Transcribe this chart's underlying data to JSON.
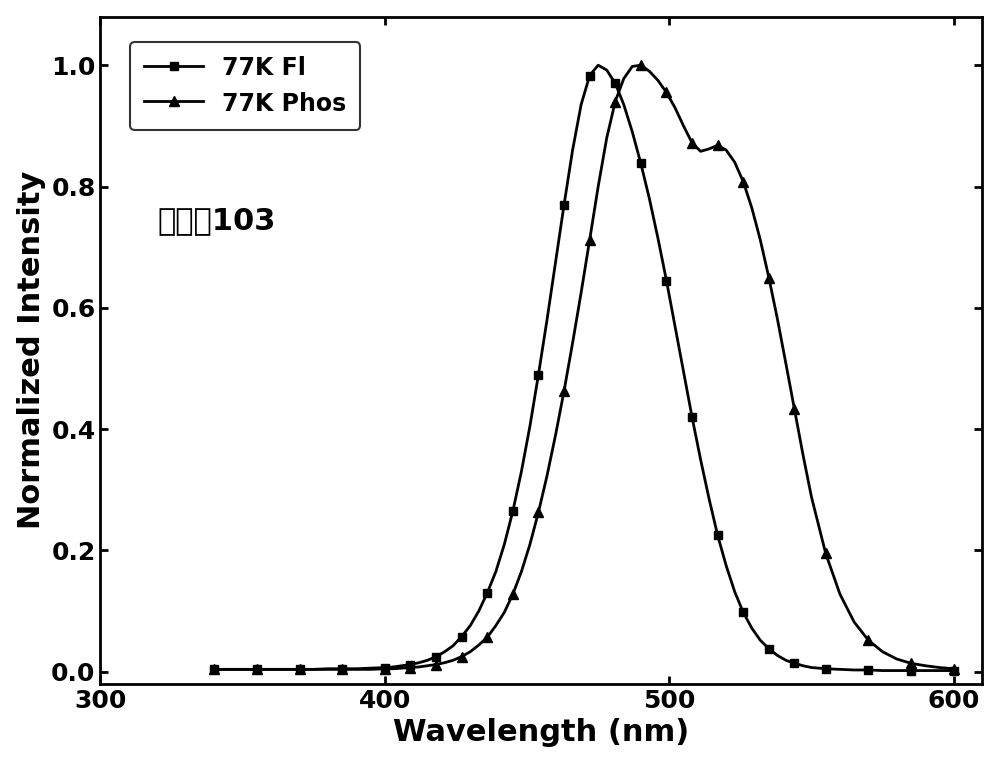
{
  "title": "",
  "xlabel": "Wavelength (nm)",
  "ylabel": "Normalized Intensity",
  "annotation": "化合物103",
  "xlim": [
    300,
    610
  ],
  "ylim": [
    -0.02,
    1.08
  ],
  "xticks": [
    300,
    400,
    500,
    600
  ],
  "yticks": [
    0.0,
    0.2,
    0.4,
    0.6,
    0.8,
    1.0
  ],
  "legend_labels": [
    "77K Fl",
    "77K Phos"
  ],
  "background_color": "#ffffff",
  "line_color": "#000000",
  "fl_x": [
    340,
    345,
    350,
    355,
    360,
    365,
    370,
    375,
    380,
    385,
    390,
    395,
    400,
    403,
    406,
    409,
    412,
    415,
    418,
    421,
    424,
    427,
    430,
    433,
    436,
    439,
    442,
    445,
    448,
    451,
    454,
    457,
    460,
    463,
    466,
    469,
    472,
    475,
    478,
    481,
    484,
    487,
    490,
    493,
    496,
    499,
    502,
    505,
    508,
    511,
    514,
    517,
    520,
    523,
    526,
    529,
    532,
    535,
    538,
    541,
    544,
    547,
    550,
    555,
    560,
    565,
    570,
    575,
    580,
    585,
    590,
    595,
    600
  ],
  "fl_y": [
    0.004,
    0.004,
    0.004,
    0.004,
    0.004,
    0.004,
    0.004,
    0.004,
    0.005,
    0.005,
    0.005,
    0.006,
    0.007,
    0.008,
    0.01,
    0.012,
    0.015,
    0.019,
    0.025,
    0.033,
    0.043,
    0.058,
    0.076,
    0.1,
    0.13,
    0.165,
    0.21,
    0.265,
    0.33,
    0.405,
    0.49,
    0.58,
    0.675,
    0.77,
    0.86,
    0.935,
    0.983,
    1.0,
    0.992,
    0.97,
    0.935,
    0.89,
    0.838,
    0.78,
    0.715,
    0.645,
    0.57,
    0.495,
    0.42,
    0.35,
    0.285,
    0.225,
    0.175,
    0.132,
    0.098,
    0.072,
    0.052,
    0.038,
    0.027,
    0.019,
    0.014,
    0.01,
    0.007,
    0.005,
    0.004,
    0.003,
    0.003,
    0.002,
    0.002,
    0.002,
    0.002,
    0.002,
    0.002
  ],
  "phos_x": [
    340,
    345,
    350,
    355,
    360,
    365,
    370,
    375,
    380,
    385,
    390,
    395,
    400,
    403,
    406,
    409,
    412,
    415,
    418,
    421,
    424,
    427,
    430,
    433,
    436,
    439,
    442,
    445,
    448,
    451,
    454,
    457,
    460,
    463,
    466,
    469,
    472,
    475,
    478,
    481,
    484,
    487,
    490,
    493,
    496,
    499,
    502,
    505,
    508,
    511,
    514,
    517,
    520,
    523,
    526,
    529,
    532,
    535,
    538,
    541,
    544,
    547,
    550,
    555,
    560,
    565,
    570,
    575,
    580,
    585,
    590,
    595,
    600
  ],
  "phos_y": [
    0.004,
    0.004,
    0.004,
    0.004,
    0.004,
    0.004,
    0.004,
    0.004,
    0.004,
    0.004,
    0.004,
    0.004,
    0.005,
    0.005,
    0.006,
    0.007,
    0.008,
    0.01,
    0.012,
    0.015,
    0.019,
    0.025,
    0.033,
    0.044,
    0.057,
    0.076,
    0.098,
    0.128,
    0.165,
    0.21,
    0.263,
    0.323,
    0.39,
    0.463,
    0.542,
    0.625,
    0.712,
    0.8,
    0.88,
    0.94,
    0.978,
    0.998,
    1.0,
    0.99,
    0.975,
    0.955,
    0.93,
    0.9,
    0.872,
    0.858,
    0.862,
    0.868,
    0.86,
    0.84,
    0.808,
    0.765,
    0.712,
    0.65,
    0.582,
    0.508,
    0.433,
    0.358,
    0.288,
    0.195,
    0.128,
    0.082,
    0.052,
    0.033,
    0.021,
    0.014,
    0.01,
    0.007,
    0.005
  ]
}
